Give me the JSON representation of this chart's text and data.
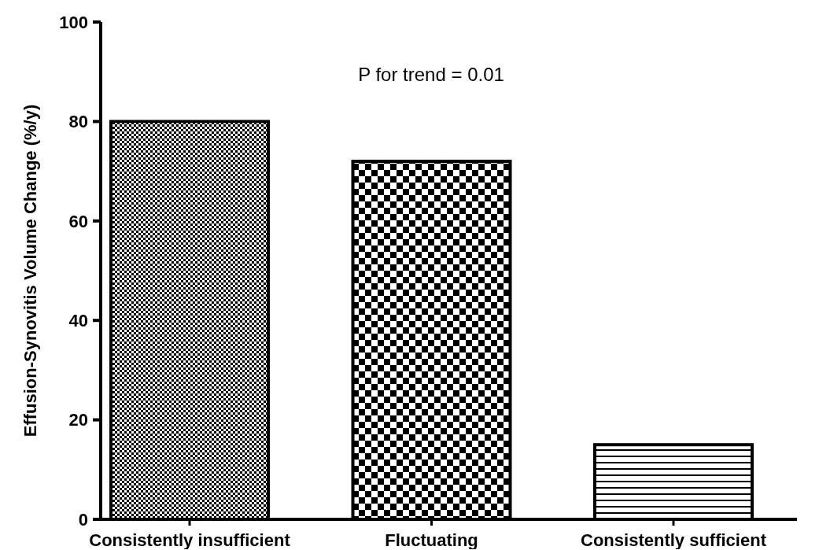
{
  "chart_data": {
    "type": "bar",
    "ylabel": "Effusion-Synovitis Volume Change (%/y)",
    "categories": [
      "Consistently insufficient",
      "Fluctuating",
      "Consistently sufficient"
    ],
    "values": [
      80,
      72,
      15
    ],
    "colors": [
      "#000000",
      "#000000",
      "#000000"
    ],
    "ylim": [
      0,
      100
    ],
    "yticks": [
      0,
      20,
      40,
      60,
      80,
      100
    ],
    "grid": false,
    "annotations": [
      "P for trend = 0.01"
    ]
  }
}
